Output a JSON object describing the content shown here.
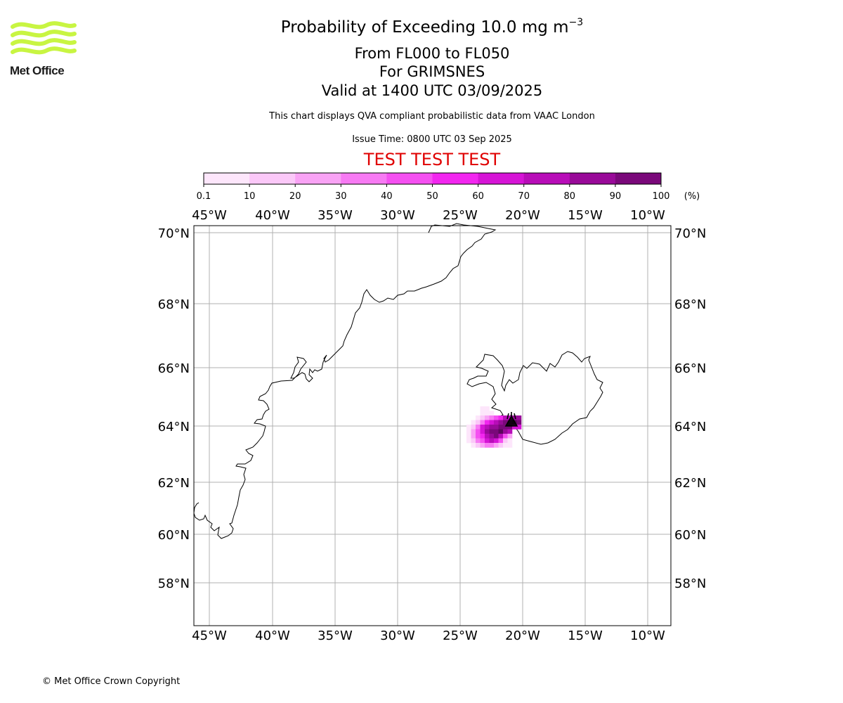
{
  "header": {
    "title_prefix": "Probability of Exceeding 10.0 mg m",
    "title_exponent": "−3",
    "levels": "From FL000 to FL050",
    "volcano": "For GRIMSNES",
    "valid_time": "Valid at 1400 UTC 03/09/2025",
    "subtitle": "This chart displays QVA compliant probabilistic data from VAAC London",
    "issue_time": "Issue Time: 0800 UTC 03 Sep 2025",
    "test_banner": "TEST TEST TEST"
  },
  "logo": {
    "text": "Met Office",
    "color": "#c8f542"
  },
  "colorbar": {
    "tick_labels": [
      "0.1",
      "10",
      "20",
      "30",
      "40",
      "50",
      "60",
      "70",
      "80",
      "90",
      "100"
    ],
    "unit": "(%)",
    "colors": [
      "#fde6fb",
      "#fbc8f8",
      "#f9a3f5",
      "#f77af3",
      "#f550f1",
      "#f226ef",
      "#d614d6",
      "#b80db8",
      "#990a99",
      "#7a087a",
      "#5c065c"
    ]
  },
  "map": {
    "lon_labels": [
      "45°W",
      "40°W",
      "35°W",
      "30°W",
      "25°W",
      "20°W",
      "15°W",
      "10°W"
    ],
    "lat_labels": [
      "70°N",
      "68°N",
      "66°N",
      "64°N",
      "62°N",
      "60°N",
      "58°N"
    ],
    "grid_color": "#b0b0b0",
    "coast_color": "#000000",
    "volcano_marker": "volcano-triangle"
  },
  "footer": {
    "copyright": "© Met Office Crown Copyright"
  }
}
